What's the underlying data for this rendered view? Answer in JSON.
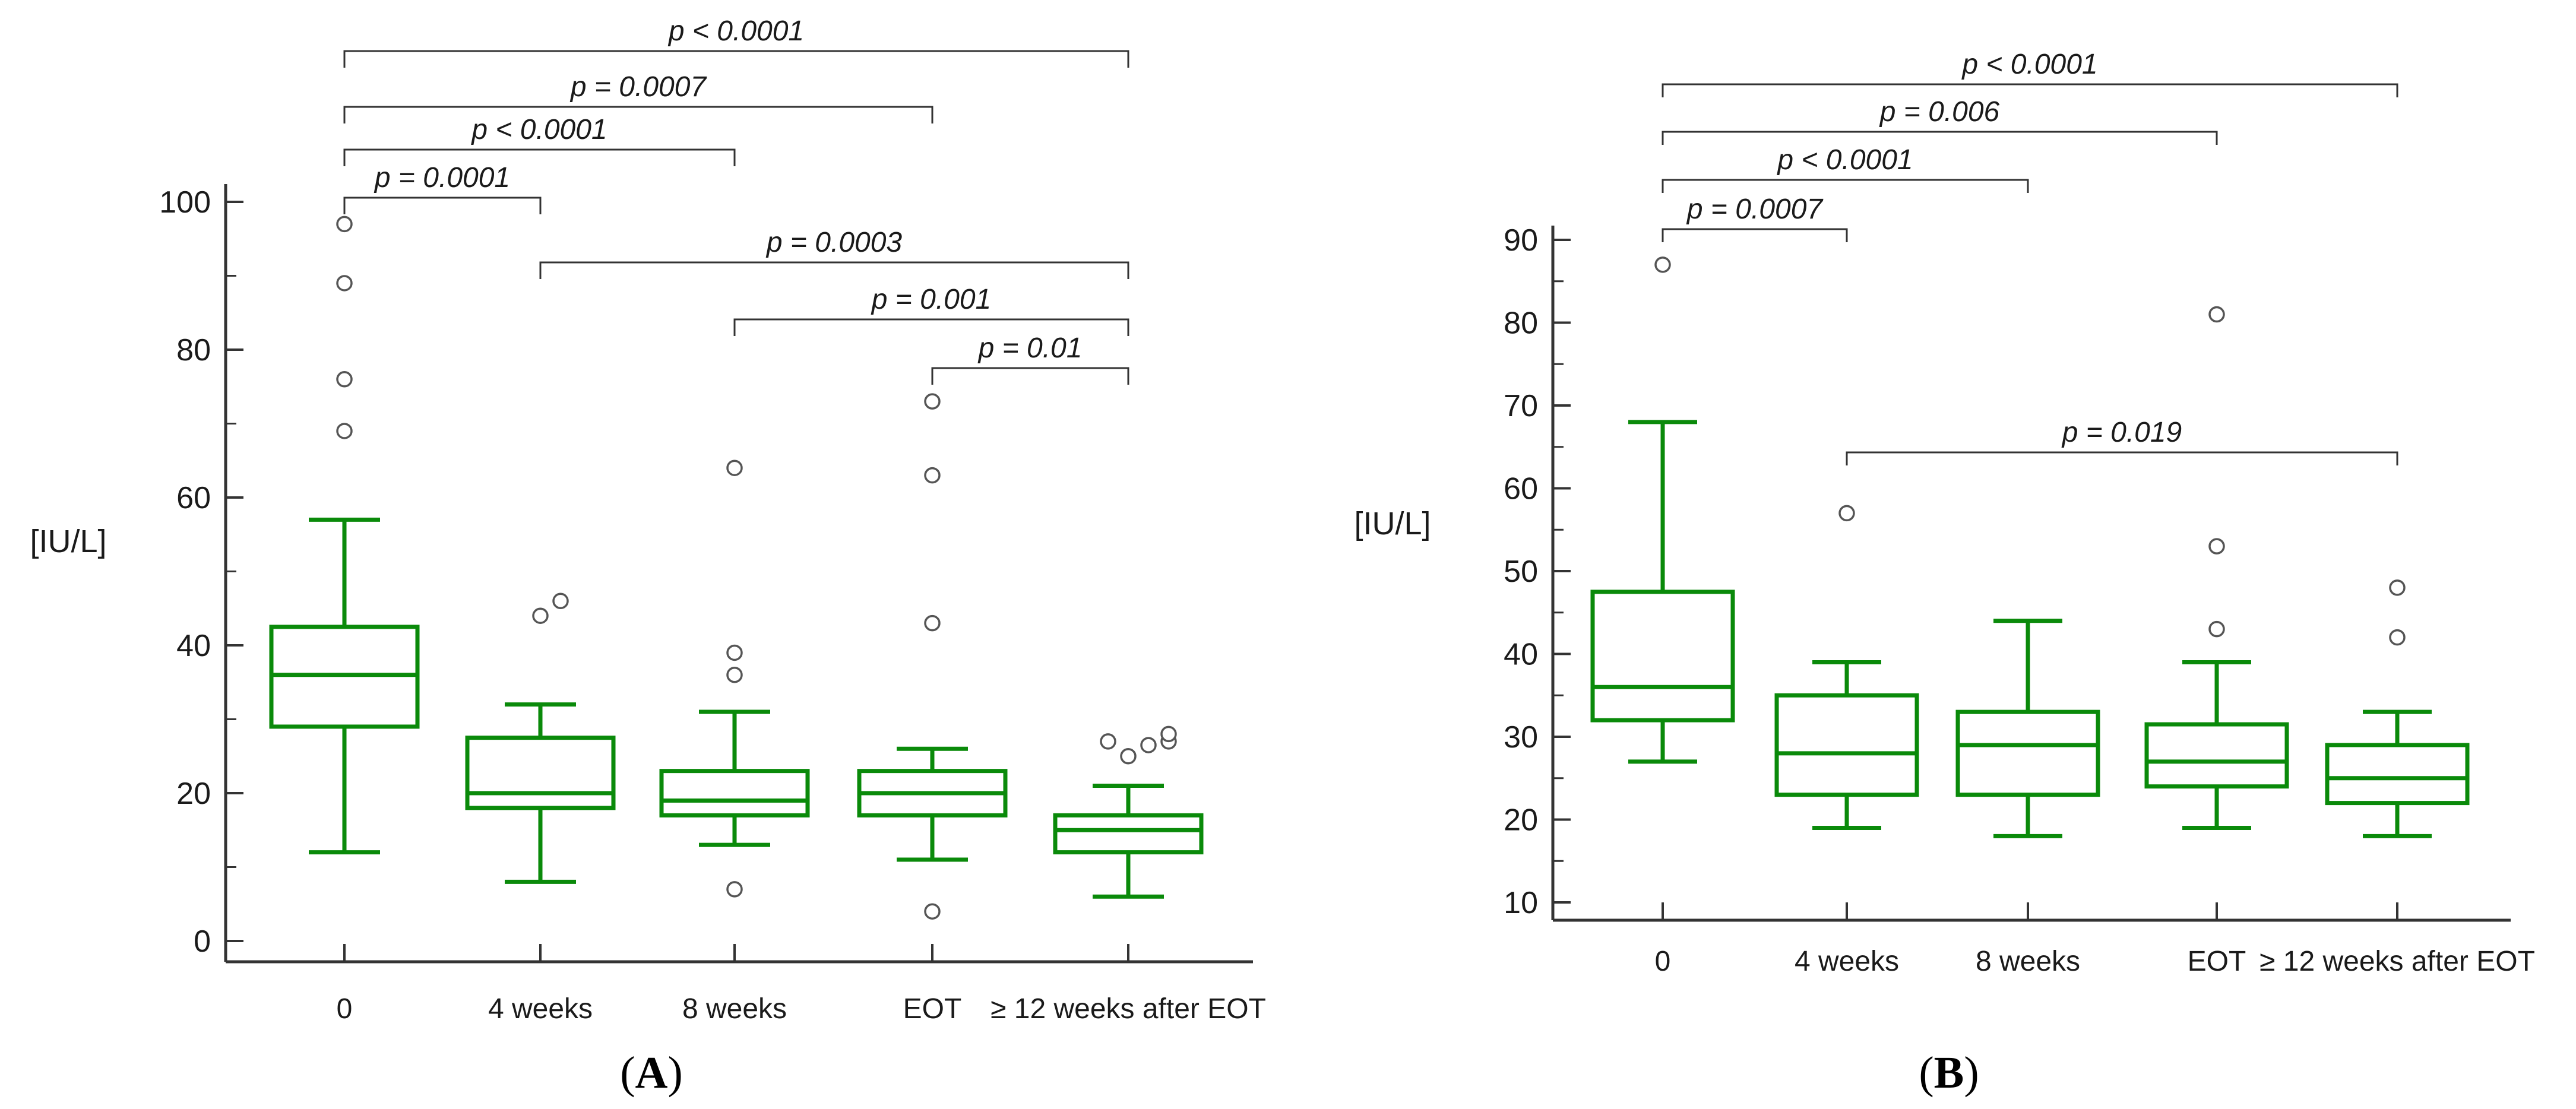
{
  "chart_data": [
    {
      "type": "boxplot",
      "panel_label": "A",
      "ylabel": "[IU/L]",
      "ylim": [
        0,
        100
      ],
      "yticks": [
        0,
        20,
        40,
        60,
        80,
        100
      ],
      "ytick_labels": [
        "0",
        "20",
        "40",
        "60",
        "80",
        "100"
      ],
      "categories": [
        "0",
        "4 weeks",
        "8 weeks",
        "EOT",
        "≥ 12 weeks after EOT"
      ],
      "box_color": "#0a8a0a",
      "boxes": [
        {
          "category": "0",
          "whisker_low": 12,
          "q1": 29,
          "median": 36,
          "q3": 42.5,
          "whisker_high": 57,
          "outliers": [
            69,
            76,
            89,
            97
          ]
        },
        {
          "category": "4 weeks",
          "whisker_low": 8,
          "q1": 18,
          "median": 20,
          "q3": 27.5,
          "whisker_high": 32,
          "outliers": [
            44,
            46
          ]
        },
        {
          "category": "8 weeks",
          "whisker_low": 13,
          "q1": 17,
          "median": 19,
          "q3": 23,
          "whisker_high": 31,
          "outliers": [
            7,
            36,
            39,
            64
          ]
        },
        {
          "category": "EOT",
          "whisker_low": 11,
          "q1": 17,
          "median": 20,
          "q3": 23,
          "whisker_high": 26,
          "outliers": [
            4,
            43,
            63,
            73
          ]
        },
        {
          "category": "≥ 12 weeks after EOT",
          "whisker_low": 6,
          "q1": 12,
          "median": 15,
          "q3": 17,
          "whisker_high": 21,
          "outliers": [
            25,
            26.5,
            27,
            27,
            28
          ]
        }
      ],
      "comparisons": [
        {
          "from": 0,
          "to": 4,
          "label": "p < 0.0001",
          "level": 1
        },
        {
          "from": 0,
          "to": 3,
          "label": "p = 0.0007",
          "level": 2
        },
        {
          "from": 0,
          "to": 2,
          "label": "p < 0.0001",
          "level": 3
        },
        {
          "from": 0,
          "to": 1,
          "label": "p = 0.0001",
          "level": 4
        },
        {
          "from": 1,
          "to": 4,
          "label": "p = 0.0003",
          "level": 5
        },
        {
          "from": 2,
          "to": 4,
          "label": "p = 0.001",
          "level": 6
        },
        {
          "from": 3,
          "to": 4,
          "label": "p = 0.01",
          "level": 7
        }
      ]
    },
    {
      "type": "boxplot",
      "panel_label": "B",
      "ylabel": "[IU/L]",
      "ylim": [
        10,
        90
      ],
      "yticks": [
        10,
        20,
        30,
        40,
        50,
        60,
        70,
        80,
        90
      ],
      "ytick_labels": [
        "10",
        "20",
        "30",
        "40",
        "50",
        "60",
        "70",
        "80",
        "90"
      ],
      "categories": [
        "0",
        "4 weeks",
        "8 weeks",
        "EOT",
        "≥ 12 weeks after EOT"
      ],
      "box_color": "#0a8a0a",
      "boxes": [
        {
          "category": "0",
          "whisker_low": 27,
          "q1": 32,
          "median": 36,
          "q3": 47.5,
          "whisker_high": 68,
          "outliers": [
            87
          ]
        },
        {
          "category": "4 weeks",
          "whisker_low": 19,
          "q1": 23,
          "median": 28,
          "q3": 35,
          "whisker_high": 39,
          "outliers": [
            57
          ]
        },
        {
          "category": "8 weeks",
          "whisker_low": 18,
          "q1": 23,
          "median": 29,
          "q3": 33,
          "whisker_high": 44,
          "outliers": []
        },
        {
          "category": "EOT",
          "whisker_low": 19,
          "q1": 24,
          "median": 27,
          "q3": 31.5,
          "whisker_high": 39,
          "outliers": [
            43,
            53,
            81
          ]
        },
        {
          "category": "≥ 12 weeks after EOT",
          "whisker_low": 18,
          "q1": 22,
          "median": 25,
          "q3": 29,
          "whisker_high": 33,
          "outliers": [
            42,
            48
          ]
        }
      ],
      "comparisons": [
        {
          "from": 0,
          "to": 4,
          "label": "p < 0.0001",
          "level": 1
        },
        {
          "from": 0,
          "to": 3,
          "label": "p = 0.006",
          "level": 2
        },
        {
          "from": 0,
          "to": 2,
          "label": "p < 0.0001",
          "level": 3
        },
        {
          "from": 0,
          "to": 1,
          "label": "p = 0.0007",
          "level": 4
        },
        {
          "from": 1,
          "to": 4,
          "label": "p = 0.019",
          "level": 5
        }
      ]
    }
  ]
}
